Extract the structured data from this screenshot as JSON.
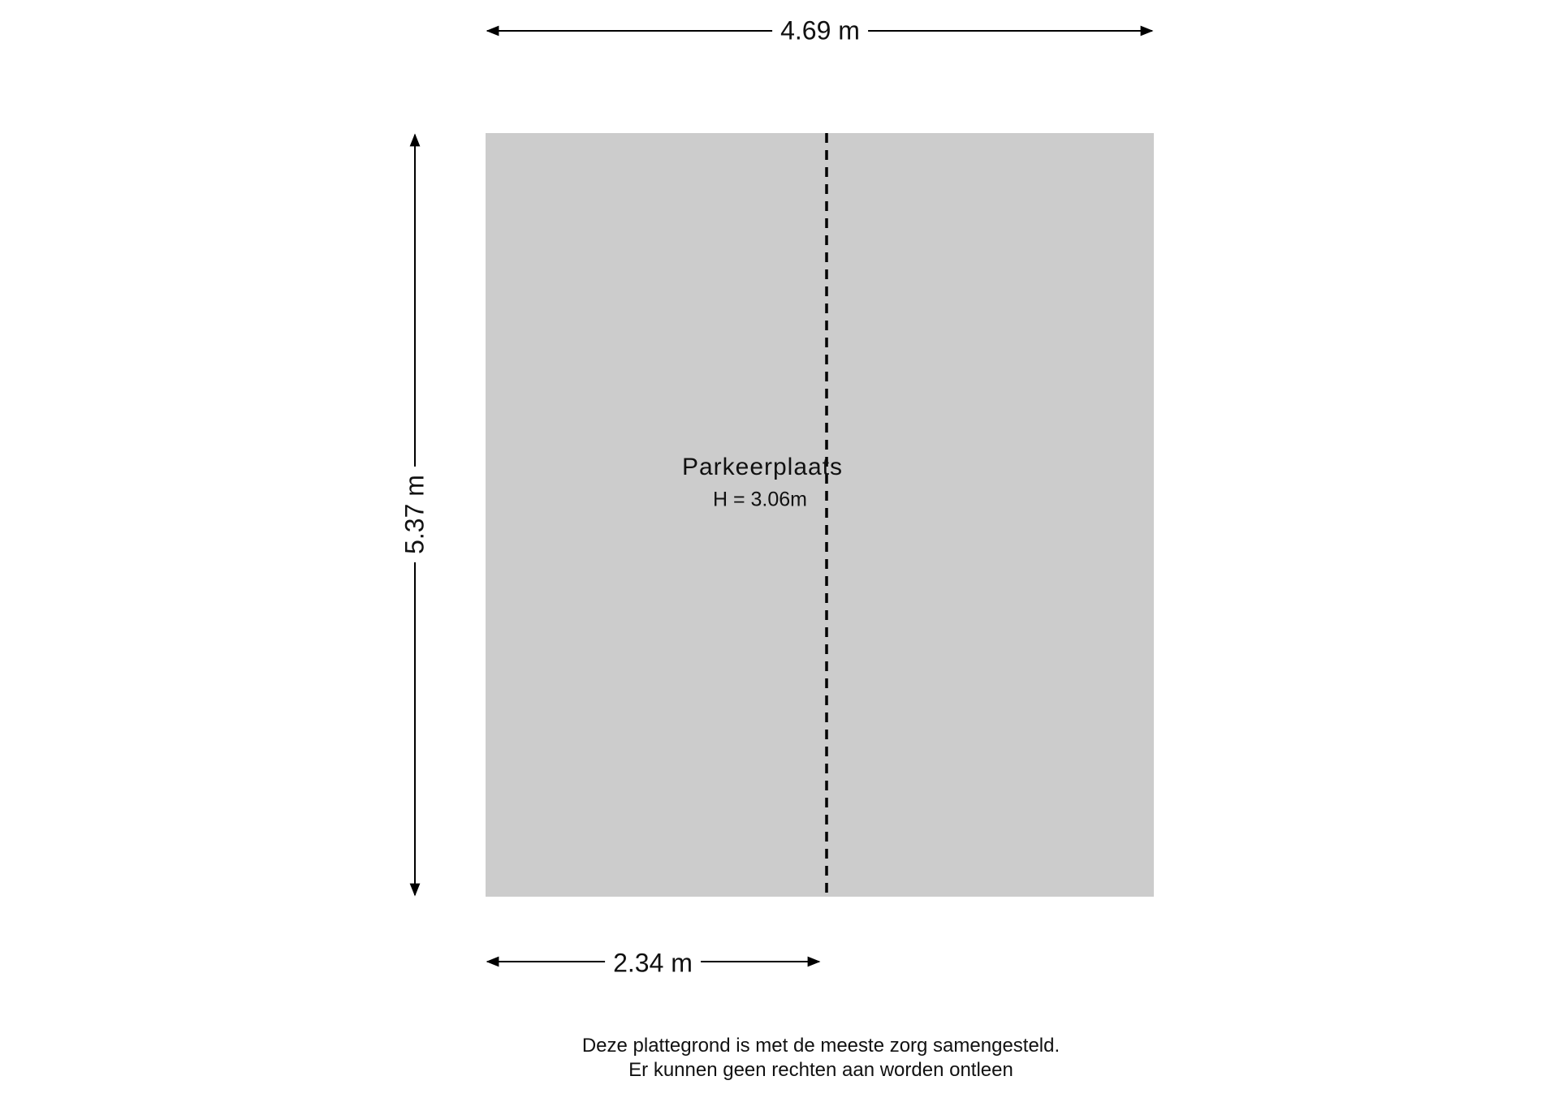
{
  "dimensions": {
    "total_width": "4.69 m",
    "total_depth": "5.37 m",
    "partial_width": "2.34 m"
  },
  "room": {
    "name": "Parkeerplaats",
    "height": "H = 3.06m",
    "fill_color": "#cccccc"
  },
  "disclaimer": {
    "line1": "Deze plattegrond is met de meeste zorg samengesteld.",
    "line2": "Er kunnen geen rechten aan worden ontleen"
  }
}
